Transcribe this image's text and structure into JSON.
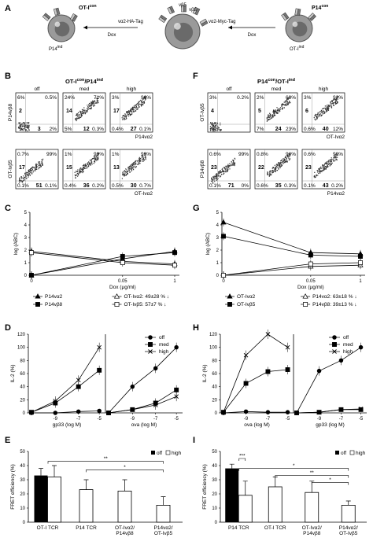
{
  "panel_letters": [
    "A",
    "B",
    "C",
    "D",
    "E",
    "F",
    "G",
    "H",
    "I"
  ],
  "colors": {
    "accent": "#000000",
    "background": "#ffffff",
    "cell": "#808080"
  },
  "panelA": {
    "cell_left_label": "OT-I",
    "cell_left_sup": "con",
    "cell_left_bottom": "P14",
    "cell_left_bottom_sup": "ind",
    "cell_mid_top": "vβ5",
    "cell_mid_top2": "vβ8",
    "tag_left": "vα2-HA-Tag",
    "tag_right": "vα2-Myc-Tag",
    "dox_left": "Dox",
    "dox_right": "Dox",
    "cell_right_label": "P14",
    "cell_right_sup": "con",
    "cell_right_bottom": "OT-I",
    "cell_right_bottom_sup": "ind"
  },
  "panelB": {
    "title": "OT-I",
    "title_sup": "con",
    "title_mid": "/P14",
    "title_sup2": "ind",
    "col_labels": [
      "off",
      "med",
      "high"
    ],
    "row1_ylabel": "P14vβ8",
    "row1_xlabel": "P14vα2",
    "row2_ylabel": "OT-Ivβ5",
    "row2_xlabel": "OT-Ivα2",
    "row1": [
      {
        "tl": "6%",
        "tr": "0.5%",
        "ml": "2",
        "bl": "",
        "bm": "3",
        "br": "2%"
      },
      {
        "tl": "24%",
        "tr": "71%",
        "ml": "14",
        "bl": "5%",
        "bm": "12",
        "br": "0.3%"
      },
      {
        "tl": "3%",
        "tr": "96%",
        "ml": "17",
        "bl": "0.4%",
        "bm": "27",
        "br": "0.1%"
      }
    ],
    "row2": [
      {
        "tl": "0.7%",
        "tr": "99%",
        "ml": "17",
        "bl": "0.1%",
        "bm": "51",
        "br": "0.1%"
      },
      {
        "tl": "1%",
        "tr": "98%",
        "ml": "15",
        "bl": "0.4%",
        "bm": "36",
        "br": "0.2%"
      },
      {
        "tl": "1%",
        "tr": "98%",
        "ml": "13",
        "bl": "0.5%",
        "bm": "30",
        "br": "0.7%"
      }
    ]
  },
  "panelF": {
    "title": "P14",
    "title_sup": "con",
    "title_mid": "/OT-I",
    "title_sup2": "ind",
    "col_labels": [
      "off",
      "med",
      "high"
    ],
    "row1_ylabel": "OT-Ivβ5",
    "row1_xlabel": "OT-Ivα2",
    "row2_ylabel": "P14vβ8",
    "row2_xlabel": "P14vα2",
    "row1": [
      {
        "tl": "3%",
        "tr": "0.2%",
        "ml": "4",
        "bl": "",
        "bm": "",
        "br": ""
      },
      {
        "tl": "2%",
        "tr": "68%",
        "ml": "5",
        "bl": "7%",
        "bm": "24",
        "br": "23%"
      },
      {
        "tl": "3%",
        "tr": "92%",
        "ml": "6",
        "bl": "0.6%",
        "bm": "40",
        "br": "12%"
      }
    ],
    "row2": [
      {
        "tl": "0.6%",
        "tr": "99%",
        "ml": "23",
        "bl": "0.1%",
        "bm": "71",
        "br": "0%"
      },
      {
        "tl": "0.8%",
        "tr": "98%",
        "ml": "22",
        "bl": "0.6%",
        "bm": "35",
        "br": "0.3%"
      },
      {
        "tl": "0.6%",
        "tr": "99%",
        "ml": "23",
        "bl": "0.1%",
        "bm": "43",
        "br": "0.2%"
      }
    ]
  },
  "panelC": {
    "ylabel": "log (ABC)",
    "xlabel": "Dox (µg/ml)",
    "ytick_labels": [
      "0",
      "1",
      "2",
      "3",
      "4",
      "5"
    ],
    "xtick_labels": [
      "0",
      "0.05",
      "1"
    ],
    "legend": [
      {
        "label": "P14vα2",
        "marker": "triangle",
        "fill": "#000"
      },
      {
        "label": "OT-Ivα2: 49±28 % ↓",
        "marker": "triangle",
        "fill": "#fff"
      },
      {
        "label": "P14vβ8",
        "marker": "square",
        "fill": "#000"
      },
      {
        "label": "OT-Ivβ5: 57±7 % ↓",
        "marker": "square",
        "fill": "#fff"
      }
    ]
  },
  "panelG": {
    "ylabel": "log (ABC)",
    "xlabel": "Dox (µg/ml)",
    "ytick_labels": [
      "0",
      "1",
      "2",
      "3",
      "4",
      "5"
    ],
    "xtick_labels": [
      "0",
      "0.05",
      "1"
    ],
    "legend": [
      {
        "label": "OT-Ivα2",
        "marker": "triangle",
        "fill": "#000"
      },
      {
        "label": "P14vα2: 63±18 % ↓",
        "marker": "triangle",
        "fill": "#fff"
      },
      {
        "label": "OT-Ivβ5",
        "marker": "square",
        "fill": "#000"
      },
      {
        "label": "P14vβ8: 39±13 % ↓",
        "marker": "square",
        "fill": "#fff"
      }
    ]
  },
  "panelD": {
    "ylabel": "IL-2 (%)",
    "ytick_labels": [
      "0",
      "20",
      "40",
      "60",
      "80",
      "100",
      "120"
    ],
    "xtick_labels": [
      "-9",
      "-7",
      "-5"
    ],
    "xlabel_left": "gp33 (log M)",
    "xlabel_right": "ova (log M)",
    "legend": [
      "off",
      "med",
      "high"
    ]
  },
  "panelH": {
    "ylabel": "IL-2 (%)",
    "ytick_labels": [
      "0",
      "20",
      "40",
      "60",
      "80",
      "100",
      "120"
    ],
    "xtick_labels": [
      "-9",
      "-7",
      "-5"
    ],
    "xlabel_left": "ova (log M)",
    "xlabel_right": "gp33 (log M)",
    "legend": [
      "off",
      "med",
      "high"
    ]
  },
  "panelE": {
    "ylabel": "FRET efficiency (%)",
    "ytick_labels": [
      "0",
      "10",
      "20",
      "30",
      "40",
      "50"
    ],
    "legend_off": "off",
    "legend_high": "high",
    "groups": [
      "OT-I TCR",
      "P14 TCR",
      "OT-Ivα2/\nP14vβ8",
      "P14vα2/\nOT-Ivβ5"
    ],
    "sig": [
      "**",
      "*"
    ]
  },
  "panelI": {
    "ylabel": "FRET efficiency (%)",
    "ytick_labels": [
      "0",
      "10",
      "20",
      "30",
      "40",
      "50"
    ],
    "legend_off": "off",
    "legend_high": "high",
    "groups": [
      "P14 TCR",
      "OT-I TCR",
      "OT-Ivα2/\nP14vβ8",
      "P14vα2/\nOT-Ivβ5"
    ],
    "sig": [
      "***",
      "*",
      "**",
      "*"
    ]
  },
  "chart_data": [
    {
      "id": "C",
      "type": "line",
      "x": [
        "0",
        "0.05",
        "1"
      ],
      "ylim": [
        0,
        5
      ],
      "series": [
        {
          "name": "P14vα2",
          "values": [
            0,
            1.3,
            1.9
          ]
        },
        {
          "name": "OT-Ivα2: 49±28 % ↓",
          "values": [
            1.9,
            1.1,
            0.9
          ]
        },
        {
          "name": "P14vβ8",
          "values": [
            0,
            1.5,
            1.8
          ]
        },
        {
          "name": "OT-Ivβ5: 57±7 % ↓",
          "values": [
            1.8,
            1.0,
            0.8
          ]
        }
      ]
    },
    {
      "id": "G",
      "type": "line",
      "x": [
        "0",
        "0.05",
        "1"
      ],
      "ylim": [
        0,
        5
      ],
      "series": [
        {
          "name": "OT-Ivα2",
          "values": [
            4.2,
            1.8,
            1.7
          ]
        },
        {
          "name": "P14vα2: 63±18 % ↓",
          "values": [
            0,
            0.7,
            0.8
          ]
        },
        {
          "name": "OT-Ivβ5",
          "values": [
            3.1,
            1.6,
            1.5
          ]
        },
        {
          "name": "P14vβ8: 39±13 % ↓",
          "values": [
            0,
            0.9,
            1.0
          ]
        }
      ]
    },
    {
      "id": "D",
      "type": "line",
      "x": [
        "-11",
        "-9",
        "-7",
        "-5"
      ],
      "ylim": [
        0,
        120
      ],
      "series": [
        {
          "name": "off gp33",
          "values": [
            0,
            0,
            2,
            3
          ]
        },
        {
          "name": "med gp33",
          "values": [
            1,
            15,
            40,
            65
          ]
        },
        {
          "name": "high gp33",
          "values": [
            1,
            18,
            50,
            100
          ]
        },
        {
          "name": "off ova",
          "values": [
            0,
            40,
            68,
            100
          ]
        },
        {
          "name": "med ova",
          "values": [
            0,
            5,
            15,
            35
          ]
        },
        {
          "name": "high ova",
          "values": [
            0,
            5,
            12,
            25
          ]
        }
      ]
    },
    {
      "id": "H",
      "type": "line",
      "x": [
        "-11",
        "-9",
        "-7",
        "-5"
      ],
      "ylim": [
        0,
        120
      ],
      "series": [
        {
          "name": "off ova",
          "values": [
            0,
            2,
            1,
            1
          ]
        },
        {
          "name": "med ova",
          "values": [
            1,
            45,
            63,
            66
          ]
        },
        {
          "name": "high ova",
          "values": [
            1,
            88,
            120,
            100
          ]
        },
        {
          "name": "off gp33",
          "values": [
            0,
            64,
            80,
            100
          ]
        },
        {
          "name": "med gp33",
          "values": [
            0,
            1,
            5,
            5
          ]
        },
        {
          "name": "high gp33",
          "values": [
            0,
            1,
            5,
            6
          ]
        }
      ]
    },
    {
      "id": "E",
      "type": "bar",
      "categories": [
        "OT-I TCR",
        "P14 TCR",
        "OT-Ivα2/P14vβ8",
        "P14vα2/OT-Ivβ5"
      ],
      "ylim": [
        0,
        50
      ],
      "series": [
        {
          "name": "off",
          "values": [
            33,
            null,
            null,
            null
          ],
          "errors": [
            5,
            null,
            null,
            null
          ]
        },
        {
          "name": "high",
          "values": [
            32,
            23,
            22,
            12
          ],
          "errors": [
            8,
            7,
            8,
            6
          ]
        }
      ]
    },
    {
      "id": "I",
      "type": "bar",
      "categories": [
        "P14 TCR",
        "OT-I TCR",
        "OT-Ivα2/P14vβ8",
        "P14vα2/OT-Ivβ5"
      ],
      "ylim": [
        0,
        50
      ],
      "series": [
        {
          "name": "off",
          "values": [
            38,
            null,
            null,
            null
          ],
          "errors": [
            3,
            null,
            null,
            null
          ]
        },
        {
          "name": "high",
          "values": [
            19,
            25,
            21,
            12
          ],
          "errors": [
            10,
            7,
            8,
            3
          ]
        }
      ]
    }
  ]
}
